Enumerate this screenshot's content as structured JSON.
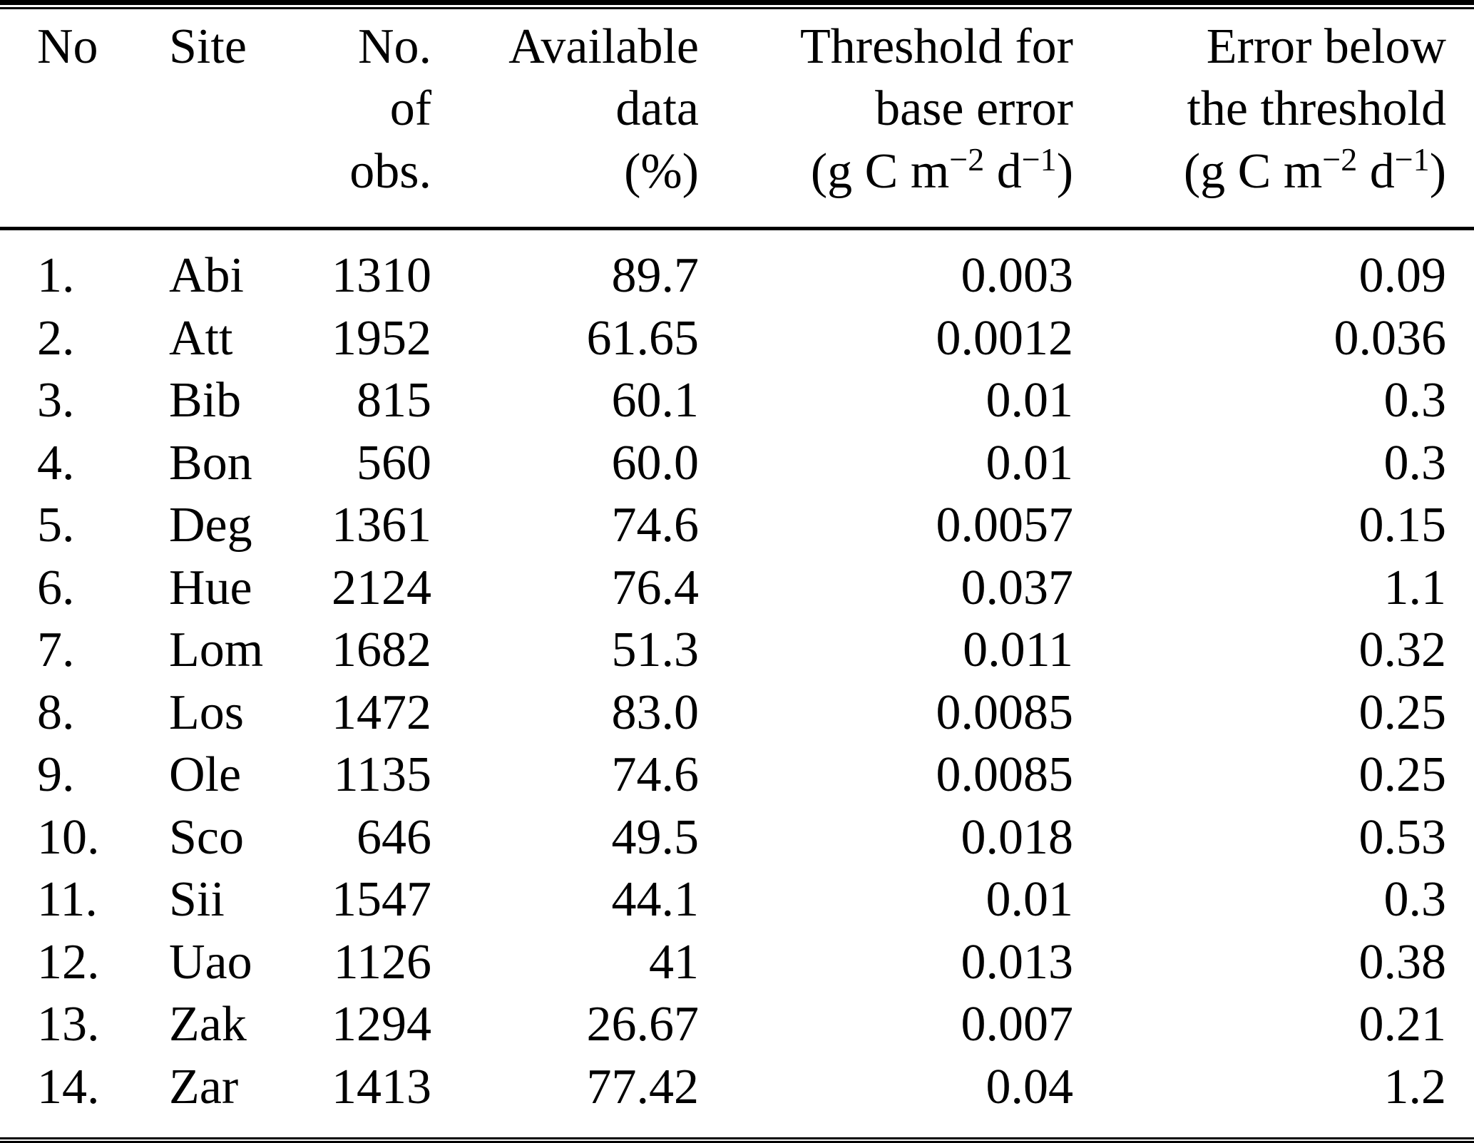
{
  "page": {
    "background": "#ffffff",
    "text_color": "#000000"
  },
  "table": {
    "columns": [
      {
        "id": "no",
        "align": "left",
        "line1": "No",
        "line2": "",
        "line3": ""
      },
      {
        "id": "site",
        "align": "left",
        "line1": "Site",
        "line2": "",
        "line3": ""
      },
      {
        "id": "obs",
        "align": "right",
        "line1": "No.",
        "line2": "of",
        "line3": "obs."
      },
      {
        "id": "available",
        "align": "right",
        "line1": "Available",
        "line2": "data",
        "line3": "(%)"
      },
      {
        "id": "threshold",
        "align": "right",
        "line1": "Threshold for",
        "line2": "base error",
        "unit": {
          "pre": "(g C m",
          "sup1": "−2",
          "mid": " d",
          "sup2": "−1",
          "post": ")"
        }
      },
      {
        "id": "error",
        "align": "right",
        "line1": "Error below",
        "line2": "the threshold",
        "unit": {
          "pre": "(g C m",
          "sup1": "−2",
          "mid": " d",
          "sup2": "−1",
          "post": ")"
        }
      }
    ],
    "rows": [
      [
        "1.",
        "Abi",
        "1310",
        "89.7",
        "0.003",
        "0.09"
      ],
      [
        "2.",
        "Att",
        "1952",
        "61.65",
        "0.0012",
        "0.036"
      ],
      [
        "3.",
        "Bib",
        "815",
        "60.1",
        "0.01",
        "0.3"
      ],
      [
        "4.",
        "Bon",
        "560",
        "60.0",
        "0.01",
        "0.3"
      ],
      [
        "5.",
        "Deg",
        "1361",
        "74.6",
        "0.0057",
        "0.15"
      ],
      [
        "6.",
        "Hue",
        "2124",
        "76.4",
        "0.037",
        "1.1"
      ],
      [
        "7.",
        "Lom",
        "1682",
        "51.3",
        "0.011",
        "0.32"
      ],
      [
        "8.",
        "Los",
        "1472",
        "83.0",
        "0.0085",
        "0.25"
      ],
      [
        "9.",
        "Ole",
        "1135",
        "74.6",
        "0.0085",
        "0.25"
      ],
      [
        "10.",
        "Sco",
        "646",
        "49.5",
        "0.018",
        "0.53"
      ],
      [
        "11.",
        "Sii",
        "1547",
        "44.1",
        "0.01",
        "0.3"
      ],
      [
        "12.",
        "Uao",
        "1126",
        "41",
        "0.013",
        "0.38"
      ],
      [
        "13.",
        "Zak",
        "1294",
        "26.67",
        "0.007",
        "0.21"
      ],
      [
        "14.",
        "Zar",
        "1413",
        "77.42",
        "0.04",
        "1.2"
      ]
    ]
  }
}
